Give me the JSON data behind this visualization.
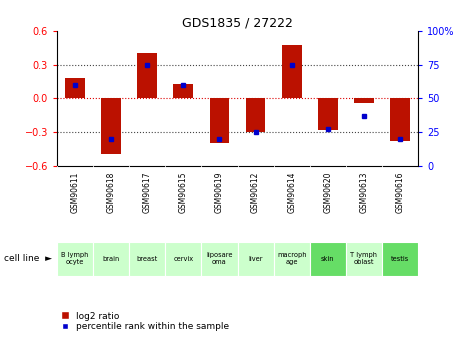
{
  "title": "GDS1835 / 27222",
  "samples": [
    "GSM90611",
    "GSM90618",
    "GSM90617",
    "GSM90615",
    "GSM90619",
    "GSM90612",
    "GSM90614",
    "GSM90620",
    "GSM90613",
    "GSM90616"
  ],
  "cell_lines": [
    "B lymph\nocyte",
    "brain",
    "breast",
    "cervix",
    "liposare\noma",
    "liver",
    "macroph\nage",
    "skin",
    "T lymph\noblast",
    "testis"
  ],
  "cell_colors": [
    "#ccffcc",
    "#ccffcc",
    "#ccffcc",
    "#ccffcc",
    "#ccffcc",
    "#ccffcc",
    "#ccffcc",
    "#66dd66",
    "#ccffcc",
    "#66dd66"
  ],
  "log2_ratio": [
    0.18,
    -0.5,
    0.4,
    0.13,
    -0.4,
    -0.3,
    0.48,
    -0.28,
    -0.04,
    -0.38
  ],
  "percentile_rank": [
    60,
    20,
    75,
    60,
    20,
    25,
    75,
    27,
    37,
    20
  ],
  "ylim": [
    -0.6,
    0.6
  ],
  "y2lim": [
    0,
    100
  ],
  "yticks": [
    -0.6,
    -0.3,
    0,
    0.3,
    0.6
  ],
  "y2ticks": [
    0,
    25,
    50,
    75,
    100
  ],
  "y2labels": [
    "0",
    "25",
    "50",
    "75",
    "100%"
  ],
  "bar_color": "#bb1100",
  "dot_color": "#0000cc",
  "hline_color": "#dd0000",
  "dotted_color": "#444444",
  "bg_color": "#ffffff",
  "plot_bg": "#ffffff",
  "sample_bg": "#bbbbbb",
  "legend_bar": "log2 ratio",
  "legend_dot": "percentile rank within the sample"
}
